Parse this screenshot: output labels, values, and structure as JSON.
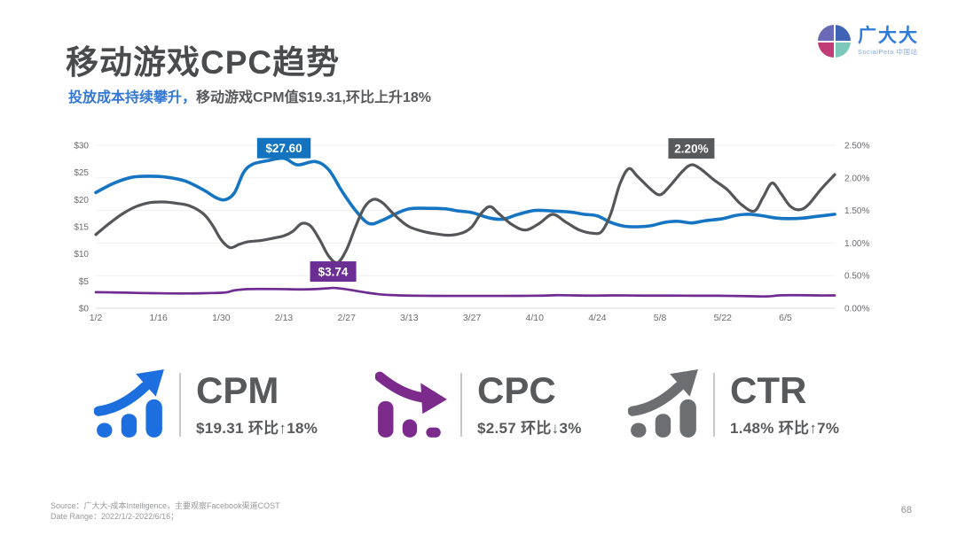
{
  "page": {
    "title": "移动游戏CPC趋势",
    "subtitle_highlight": "投放成本持续攀升，",
    "subtitle_rest": "移动游戏CPM值$19.31,环比上升18%",
    "source_line1": "Source：广大大-成本Intelligence，主要观察Facebook渠道COST",
    "source_line2": "Date Range：2022/1/2-2022/6/16；",
    "page_number": "68"
  },
  "logo": {
    "name": "广大大",
    "subtext": "SocialPeta 中国站",
    "mark": "four-quadrant-circle-logo"
  },
  "chart_data": {
    "type": "line",
    "x_unit": "days since 2022-01-02",
    "end_day": 165,
    "x_axis": {
      "tick_days": [
        0,
        14,
        28,
        42,
        56,
        70,
        84,
        98,
        112,
        126,
        140,
        154
      ],
      "tick_labels": [
        "1/2",
        "1/16",
        "1/30",
        "2/13",
        "2/27",
        "3/13",
        "3/27",
        "4/10",
        "4/24",
        "5/8",
        "5/22",
        "6/5"
      ]
    },
    "left_axis": {
      "min": 0,
      "max": 30,
      "tick_values": [
        0,
        5,
        10,
        15,
        20,
        25,
        30
      ],
      "tick_labels": [
        "$0",
        "$5",
        "$10",
        "$15",
        "$20",
        "$25",
        "$30"
      ]
    },
    "right_axis": {
      "min": 0,
      "max": 2.5,
      "tick_values": [
        0,
        0.5,
        1,
        1.5,
        2,
        2.5
      ],
      "tick_labels": [
        "0.00%",
        "0.50%",
        "1.00%",
        "1.50%",
        "2.00%",
        "2.50%"
      ]
    },
    "grid": "horizontal-light",
    "series": [
      {
        "name": "CPM",
        "axis": "left",
        "color": "#1575c2",
        "width": 3.6,
        "points": [
          [
            0,
            21.3
          ],
          [
            4,
            23.0
          ],
          [
            8,
            24.1
          ],
          [
            12,
            24.3
          ],
          [
            16,
            24.1
          ],
          [
            20,
            23.4
          ],
          [
            24,
            21.8
          ],
          [
            27,
            20.3
          ],
          [
            29,
            20.0
          ],
          [
            31,
            21.3
          ],
          [
            33,
            25.0
          ],
          [
            35,
            26.5
          ],
          [
            38,
            27.1
          ],
          [
            42,
            27.6
          ],
          [
            45,
            26.4
          ],
          [
            49,
            27.0
          ],
          [
            52,
            25.5
          ],
          [
            55,
            21.5
          ],
          [
            58,
            18.0
          ],
          [
            61,
            15.6
          ],
          [
            64,
            16.2
          ],
          [
            67,
            17.4
          ],
          [
            70,
            18.3
          ],
          [
            74,
            18.4
          ],
          [
            78,
            18.3
          ],
          [
            81,
            17.9
          ],
          [
            84,
            17.6
          ],
          [
            88,
            16.6
          ],
          [
            91,
            16.4
          ],
          [
            94,
            17.2
          ],
          [
            98,
            18.0
          ],
          [
            102,
            17.9
          ],
          [
            106,
            17.7
          ],
          [
            109,
            17.3
          ],
          [
            112,
            17.0
          ],
          [
            115,
            15.8
          ],
          [
            118,
            15.1
          ],
          [
            121,
            15.0
          ],
          [
            124,
            15.2
          ],
          [
            127,
            15.8
          ],
          [
            130,
            16.0
          ],
          [
            133,
            15.7
          ],
          [
            136,
            16.1
          ],
          [
            140,
            16.5
          ],
          [
            143,
            17.1
          ],
          [
            146,
            17.3
          ],
          [
            149,
            17.0
          ],
          [
            152,
            16.6
          ],
          [
            155,
            16.5
          ],
          [
            158,
            16.6
          ],
          [
            161,
            16.9
          ],
          [
            165,
            17.3
          ]
        ]
      },
      {
        "name": "CTR",
        "axis": "right",
        "color": "#555659",
        "width": 3.2,
        "points": [
          [
            0,
            1.13
          ],
          [
            3,
            1.3
          ],
          [
            6,
            1.45
          ],
          [
            9,
            1.56
          ],
          [
            12,
            1.62
          ],
          [
            15,
            1.63
          ],
          [
            18,
            1.61
          ],
          [
            21,
            1.57
          ],
          [
            24,
            1.45
          ],
          [
            26,
            1.28
          ],
          [
            28,
            1.05
          ],
          [
            30,
            0.93
          ],
          [
            32,
            0.98
          ],
          [
            34,
            1.02
          ],
          [
            37,
            1.04
          ],
          [
            40,
            1.08
          ],
          [
            42,
            1.11
          ],
          [
            44,
            1.18
          ],
          [
            46,
            1.3
          ],
          [
            48,
            1.26
          ],
          [
            50,
            1.05
          ],
          [
            52,
            0.8
          ],
          [
            54,
            0.7
          ],
          [
            56,
            0.9
          ],
          [
            58,
            1.25
          ],
          [
            60,
            1.55
          ],
          [
            62,
            1.67
          ],
          [
            64,
            1.62
          ],
          [
            66,
            1.48
          ],
          [
            68,
            1.35
          ],
          [
            70,
            1.25
          ],
          [
            73,
            1.18
          ],
          [
            76,
            1.14
          ],
          [
            79,
            1.12
          ],
          [
            82,
            1.16
          ],
          [
            84,
            1.25
          ],
          [
            86,
            1.45
          ],
          [
            88,
            1.56
          ],
          [
            90,
            1.45
          ],
          [
            93,
            1.28
          ],
          [
            96,
            1.2
          ],
          [
            99,
            1.3
          ],
          [
            102,
            1.44
          ],
          [
            105,
            1.32
          ],
          [
            108,
            1.2
          ],
          [
            111,
            1.15
          ],
          [
            113,
            1.18
          ],
          [
            115,
            1.45
          ],
          [
            117,
            1.9
          ],
          [
            119,
            2.14
          ],
          [
            121,
            2.02
          ],
          [
            124,
            1.82
          ],
          [
            126,
            1.74
          ],
          [
            128,
            1.86
          ],
          [
            131,
            2.1
          ],
          [
            133,
            2.2
          ],
          [
            135,
            2.14
          ],
          [
            138,
            1.97
          ],
          [
            141,
            1.82
          ],
          [
            144,
            1.6
          ],
          [
            147,
            1.49
          ],
          [
            149,
            1.7
          ],
          [
            151,
            1.92
          ],
          [
            153,
            1.76
          ],
          [
            155,
            1.57
          ],
          [
            157,
            1.51
          ],
          [
            159,
            1.58
          ],
          [
            162,
            1.83
          ],
          [
            165,
            2.05
          ]
        ]
      },
      {
        "name": "CPC",
        "axis": "left",
        "color": "#6e2c91",
        "width": 2.7,
        "points": [
          [
            0,
            2.95
          ],
          [
            5,
            2.9
          ],
          [
            10,
            2.8
          ],
          [
            14,
            2.76
          ],
          [
            18,
            2.72
          ],
          [
            22,
            2.73
          ],
          [
            26,
            2.8
          ],
          [
            29,
            2.9
          ],
          [
            31,
            3.3
          ],
          [
            34,
            3.52
          ],
          [
            37,
            3.55
          ],
          [
            40,
            3.54
          ],
          [
            43,
            3.5
          ],
          [
            46,
            3.46
          ],
          [
            49,
            3.52
          ],
          [
            52,
            3.68
          ],
          [
            53,
            3.74
          ],
          [
            55,
            3.6
          ],
          [
            57,
            3.35
          ],
          [
            60,
            2.95
          ],
          [
            63,
            2.6
          ],
          [
            66,
            2.42
          ],
          [
            70,
            2.32
          ],
          [
            75,
            2.28
          ],
          [
            80,
            2.27
          ],
          [
            85,
            2.27
          ],
          [
            90,
            2.27
          ],
          [
            95,
            2.28
          ],
          [
            100,
            2.32
          ],
          [
            103,
            2.4
          ],
          [
            107,
            2.36
          ],
          [
            111,
            2.32
          ],
          [
            115,
            2.36
          ],
          [
            119,
            2.35
          ],
          [
            124,
            2.32
          ],
          [
            129,
            2.32
          ],
          [
            134,
            2.3
          ],
          [
            139,
            2.3
          ],
          [
            143,
            2.26
          ],
          [
            147,
            2.2
          ],
          [
            150,
            2.18
          ],
          [
            153,
            2.38
          ],
          [
            157,
            2.4
          ],
          [
            161,
            2.36
          ],
          [
            165,
            2.36
          ]
        ]
      }
    ],
    "annotations": [
      {
        "text": "$27.60",
        "series": "CPM",
        "day": 42,
        "value": 27.6,
        "bg": "#1373be",
        "gap": 0
      },
      {
        "text": "2.20%",
        "series": "CTR",
        "day": 133,
        "value": 2.2,
        "bg": "#58595b",
        "gap": 7
      },
      {
        "text": "$3.74",
        "series": "CPC",
        "day": 53,
        "value": 3.74,
        "bg": "#6b2e93",
        "gap": 7
      }
    ]
  },
  "metrics": [
    {
      "label": "CPM",
      "value_line": "$19.31 环比↑18%",
      "trend": "up",
      "color": "#1d6fe0"
    },
    {
      "label": "CPC",
      "value_line": "$2.57 环比↓3%",
      "trend": "down",
      "color": "#7c2b8c"
    },
    {
      "label": "CTR",
      "value_line": "1.48% 环比↑7%",
      "trend": "up",
      "color": "#6d6e71"
    }
  ]
}
